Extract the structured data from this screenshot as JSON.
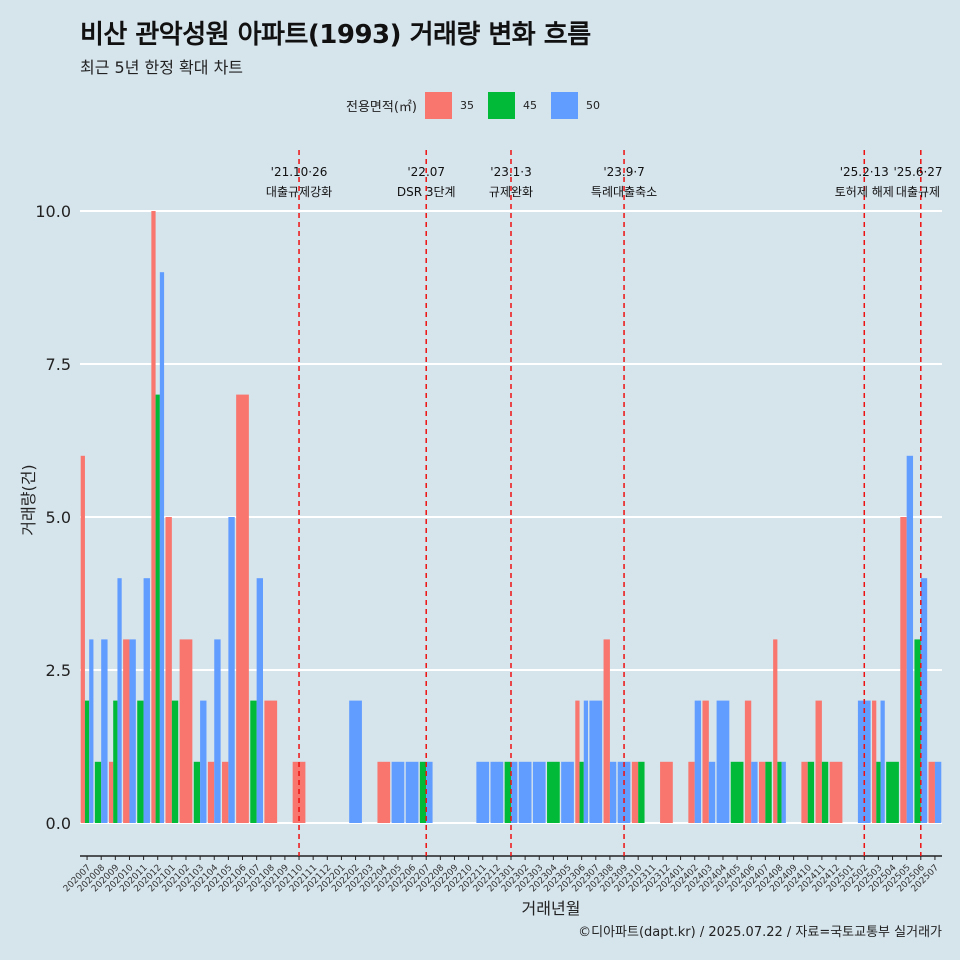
{
  "title": "비산 관악성원 아파트(1993) 거래량 변화 흐름",
  "subtitle": "최근 5년 한정 확대 차트",
  "caption": "©디아파트(dapt.kr) / 2025.07.22 / 자료=국토교통부 실거래가",
  "legend": {
    "title": "전용면적(㎡)",
    "items": [
      {
        "label": "35",
        "color": "#F8766D"
      },
      {
        "label": "45",
        "color": "#00BA38"
      },
      {
        "label": "50",
        "color": "#619CFF"
      }
    ]
  },
  "chart_data": {
    "type": "bar",
    "xlabel": "거래년월",
    "ylabel": "거래량(건)",
    "ylim": [
      0,
      10
    ],
    "yticks": [
      "0.0",
      "2.5",
      "5.0",
      "7.5",
      "10.0"
    ],
    "grid": true,
    "legend_position": "top",
    "categories": [
      "202007",
      "202008",
      "202009",
      "202010",
      "202011",
      "202012",
      "202101",
      "202102",
      "202103",
      "202104",
      "202105",
      "202106",
      "202107",
      "202108",
      "202109",
      "202110",
      "202111",
      "202112",
      "202201",
      "202202",
      "202203",
      "202204",
      "202205",
      "202206",
      "202207",
      "202208",
      "202209",
      "202210",
      "202211",
      "202212",
      "202301",
      "202302",
      "202303",
      "202304",
      "202305",
      "202306",
      "202307",
      "202308",
      "202309",
      "202310",
      "202311",
      "202312",
      "202401",
      "202402",
      "202403",
      "202404",
      "202405",
      "202406",
      "202407",
      "202408",
      "202409",
      "202410",
      "202411",
      "202412",
      "202501",
      "202502",
      "202503",
      "202504",
      "202505",
      "202506",
      "202507"
    ],
    "series": [
      {
        "name": "35",
        "color": "#F8766D",
        "values": [
          6,
          0,
          1,
          3,
          0,
          10,
          5,
          3,
          0,
          1,
          1,
          7,
          0,
          2,
          0,
          1,
          0,
          0,
          0,
          0,
          0,
          1,
          0,
          0,
          0,
          0,
          0,
          0,
          0,
          0,
          0,
          0,
          0,
          0,
          0,
          2,
          0,
          3,
          0,
          1,
          0,
          1,
          0,
          1,
          2,
          0,
          0,
          2,
          1,
          3,
          0,
          1,
          2,
          1,
          0,
          0,
          2,
          0,
          5,
          0,
          1
        ]
      },
      {
        "name": "45",
        "color": "#00BA38",
        "values": [
          2,
          1,
          2,
          0,
          2,
          7,
          2,
          0,
          1,
          0,
          0,
          0,
          2,
          0,
          0,
          0,
          0,
          0,
          0,
          0,
          0,
          0,
          0,
          0,
          1,
          0,
          0,
          0,
          0,
          0,
          1,
          0,
          0,
          1,
          0,
          1,
          0,
          0,
          0,
          1,
          0,
          0,
          0,
          0,
          0,
          0,
          1,
          0,
          1,
          1,
          0,
          1,
          1,
          0,
          0,
          0,
          1,
          1,
          0,
          3,
          0
        ]
      },
      {
        "name": "50",
        "color": "#619CFF",
        "values": [
          3,
          3,
          4,
          3,
          4,
          9,
          0,
          0,
          2,
          3,
          5,
          0,
          4,
          0,
          0,
          0,
          0,
          0,
          0,
          2,
          0,
          0,
          1,
          1,
          1,
          0,
          0,
          0,
          1,
          1,
          1,
          1,
          1,
          0,
          1,
          2,
          2,
          1,
          1,
          0,
          0,
          0,
          0,
          2,
          1,
          2,
          0,
          1,
          0,
          1,
          0,
          0,
          0,
          0,
          0,
          2,
          2,
          0,
          6,
          4,
          1
        ]
      }
    ],
    "annotations": [
      {
        "category": "202110",
        "date": "'21.10·26",
        "label": "대출규제강화"
      },
      {
        "category": "202207",
        "date": "'22.07",
        "label": "DSR 3단계"
      },
      {
        "category": "202301",
        "date": "'23.1·3",
        "label": "규제완화"
      },
      {
        "category": "202309",
        "date": "'23.9·7",
        "label": "특례대출축소"
      },
      {
        "category": "202502",
        "date": "'25.2·13",
        "label": "토허제 해제"
      },
      {
        "category": "202506",
        "date": "'25.6·27",
        "label": "대출규제"
      }
    ]
  }
}
